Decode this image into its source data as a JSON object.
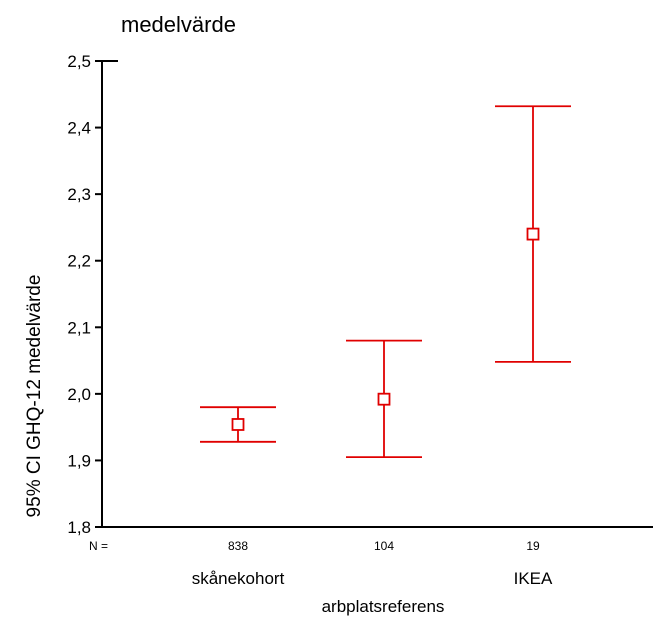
{
  "chart_data": {
    "type": "errorbar",
    "title": "medelvärde",
    "ylabel": "95% CI GHQ-12 medelvärde",
    "xlabel": "arbplatsreferens",
    "ylim": [
      1.8,
      2.5
    ],
    "yticks": [
      1.8,
      1.9,
      2.0,
      2.1,
      2.2,
      2.3,
      2.4,
      2.5
    ],
    "ytick_labels": [
      "1,8",
      "1,9",
      "2,0",
      "2,1",
      "2,2",
      "2,3",
      "2,4",
      "2,5"
    ],
    "n_label": "N =",
    "color": "#e00000",
    "groups": [
      {
        "label": "skånekohort",
        "n": "838",
        "mean": 1.954,
        "lower": 1.928,
        "upper": 1.98
      },
      {
        "label": "",
        "n": "104",
        "mean": 1.992,
        "lower": 1.905,
        "upper": 2.08
      },
      {
        "label": "IKEA",
        "n": "19",
        "mean": 2.24,
        "lower": 2.048,
        "upper": 2.432
      }
    ]
  }
}
